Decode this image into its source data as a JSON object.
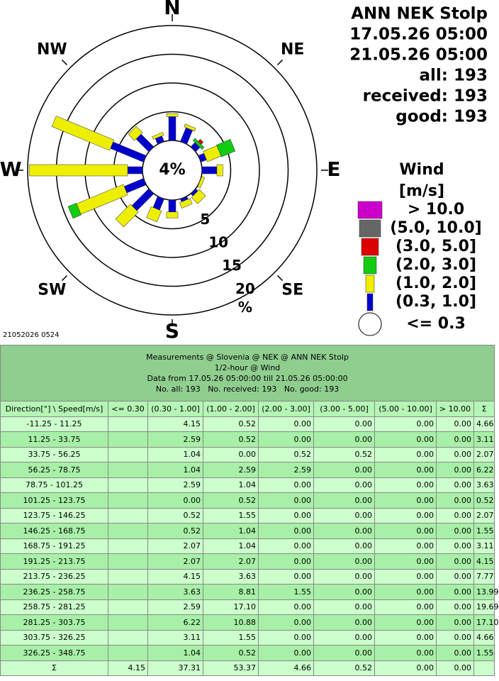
{
  "header": {
    "title": "ANN NEK Stolp",
    "from": "17.05.26 05:00",
    "to": "21.05.26 05:00",
    "all": "all: 193",
    "received": "received: 193",
    "good": "good: 193"
  },
  "compass": [
    "N",
    "NE",
    "E",
    "SE",
    "S",
    "SW",
    "W",
    "NW"
  ],
  "center_label": "4%",
  "ring_labels": [
    "5",
    "10",
    "15",
    "20"
  ],
  "ring_unit": "%",
  "legend": {
    "title": "Wind",
    "unit": "[m/s]",
    "items": [
      {
        "label": "> 10.0",
        "color": "#cc00cc"
      },
      {
        "label": "(5.0, 10.0]",
        "color": "#666666"
      },
      {
        "label": "(3.0, 5.0]",
        "color": "#dd0000"
      },
      {
        "label": "(2.0, 3.0]",
        "color": "#11cc11"
      },
      {
        "label": "(1.0, 2.0]",
        "color": "#eeee00"
      },
      {
        "label": "(0.3, 1.0]",
        "color": "#0000cc"
      },
      {
        "label": "<= 0.3",
        "color": "#ffffff"
      }
    ]
  },
  "timestamp": "21052026 0524",
  "table": {
    "caption": [
      "Measurements @ Slovenia @ NEK @ ANN NEK Stolp",
      "1/2-hour @ Wind",
      "Data from 17.05.26 05:00:00 till 21.05.26 05:00:00",
      "No. all: 193   No. received: 193   No. good: 193"
    ],
    "columns": [
      "Direction[°] \\ Speed[m/s]",
      "<= 0.30",
      "(0.30 - 1.00]",
      "(1.00 - 2.00]",
      "(2.00 - 3.00]",
      "(3.00 - 5.00]",
      "(5.00 - 10.00]",
      "> 10.00",
      "Σ"
    ],
    "rows": [
      [
        "-11.25 - 11.25",
        null,
        "4.15",
        "0.52",
        "0.00",
        "0.00",
        "0.00",
        "0.00",
        "4.66"
      ],
      [
        "11.25 - 33.75",
        null,
        "2.59",
        "0.52",
        "0.00",
        "0.00",
        "0.00",
        "0.00",
        "3.11"
      ],
      [
        "33.75 - 56.25",
        null,
        "1.04",
        "0.00",
        "0.52",
        "0.52",
        "0.00",
        "0.00",
        "2.07"
      ],
      [
        "56.25 - 78.75",
        null,
        "1.04",
        "2.59",
        "2.59",
        "0.00",
        "0.00",
        "0.00",
        "6.22"
      ],
      [
        "78.75 - 101.25",
        null,
        "2.59",
        "1.04",
        "0.00",
        "0.00",
        "0.00",
        "0.00",
        "3.63"
      ],
      [
        "101.25 - 123.75",
        null,
        "0.00",
        "0.52",
        "0.00",
        "0.00",
        "0.00",
        "0.00",
        "0.52"
      ],
      [
        "123.75 - 146.25",
        null,
        "0.52",
        "1.55",
        "0.00",
        "0.00",
        "0.00",
        "0.00",
        "2.07"
      ],
      [
        "146.25 - 168.75",
        null,
        "0.52",
        "1.04",
        "0.00",
        "0.00",
        "0.00",
        "0.00",
        "1.55"
      ],
      [
        "168.75 - 191.25",
        null,
        "2.07",
        "1.04",
        "0.00",
        "0.00",
        "0.00",
        "0.00",
        "3.11"
      ],
      [
        "191.25 - 213.75",
        null,
        "2.07",
        "2.07",
        "0.00",
        "0.00",
        "0.00",
        "0.00",
        "4.15"
      ],
      [
        "213.75 - 236.25",
        null,
        "4.15",
        "3.63",
        "0.00",
        "0.00",
        "0.00",
        "0.00",
        "7.77"
      ],
      [
        "236.25 - 258.75",
        null,
        "3.63",
        "8.81",
        "1.55",
        "0.00",
        "0.00",
        "0.00",
        "13.99"
      ],
      [
        "258.75 - 281.25",
        null,
        "2.59",
        "17.10",
        "0.00",
        "0.00",
        "0.00",
        "0.00",
        "19.69"
      ],
      [
        "281.25 - 303.75",
        null,
        "6.22",
        "10.88",
        "0.00",
        "0.00",
        "0.00",
        "0.00",
        "17.10"
      ],
      [
        "303.75 - 326.25",
        null,
        "3.11",
        "1.55",
        "0.00",
        "0.00",
        "0.00",
        "0.00",
        "4.66"
      ],
      [
        "326.25 - 348.75",
        null,
        "1.04",
        "0.52",
        "0.00",
        "0.00",
        "0.00",
        "0.00",
        "1.55"
      ]
    ],
    "total": [
      "Σ",
      "4.15",
      "37.31",
      "53.37",
      "4.66",
      "0.52",
      "0.00",
      "0.00",
      null
    ]
  }
}
